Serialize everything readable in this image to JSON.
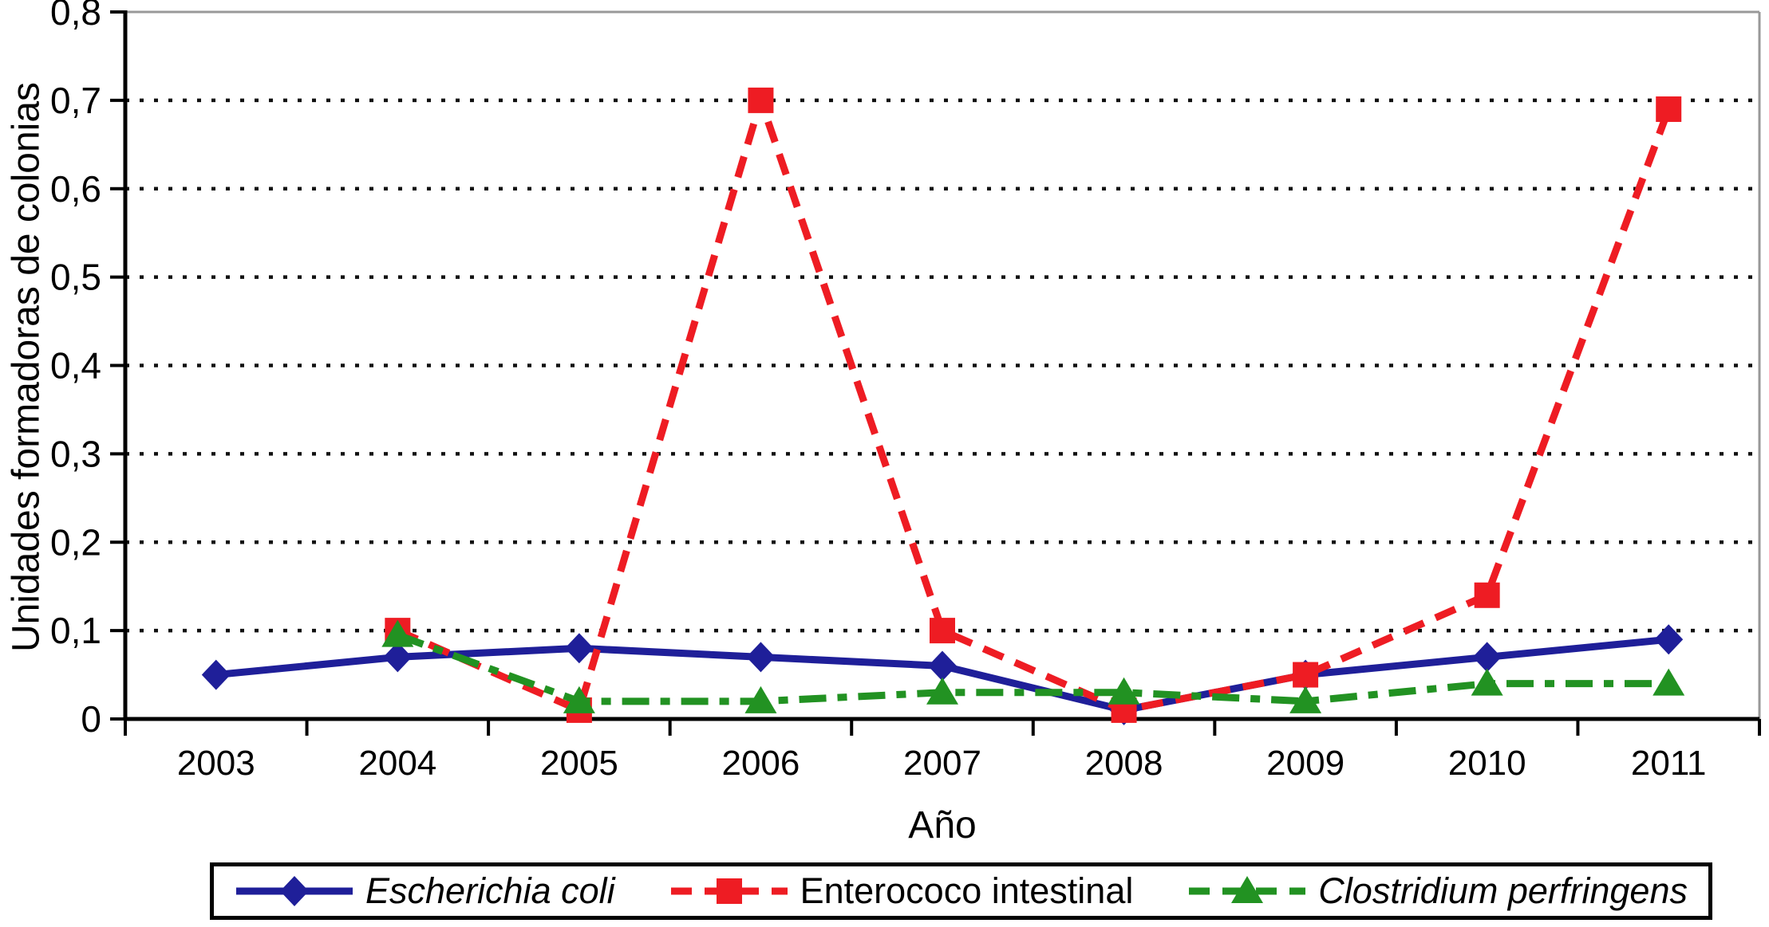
{
  "chart_data": {
    "type": "line",
    "title": "",
    "xlabel": "Año",
    "ylabel": "Unidades formadoras de colonias",
    "categories": [
      "2003",
      "2004",
      "2005",
      "2006",
      "2007",
      "2008",
      "2009",
      "2010",
      "2011"
    ],
    "y_tick_labels": [
      "0",
      "0,1",
      "0,2",
      "0,3",
      "0,4",
      "0,5",
      "0,6",
      "0,7",
      "0,8"
    ],
    "y_tick_values": [
      0,
      0.1,
      0.2,
      0.3,
      0.4,
      0.5,
      0.6,
      0.7,
      0.8
    ],
    "ylim": [
      0,
      0.8
    ],
    "grid": "horizontal dotted black lines at each 0.1",
    "legend_position": "bottom",
    "axis_color": "#000000",
    "plot_border_color": "#999999",
    "series": [
      {
        "name": "Escherichia coli",
        "italic": true,
        "color": "#1F1F99",
        "line_style": "solid",
        "marker": "diamond",
        "values": [
          0.05,
          0.07,
          0.08,
          0.07,
          0.06,
          0.01,
          0.05,
          0.07,
          0.09
        ]
      },
      {
        "name": "Enterococo intestinal",
        "italic": false,
        "color": "#EE1C23",
        "line_style": "dashed",
        "marker": "square",
        "values": [
          null,
          0.1,
          0.01,
          0.7,
          0.1,
          0.01,
          0.05,
          0.14,
          0.69
        ]
      },
      {
        "name": "Clostridium perfringens",
        "italic": true,
        "color": "#229222",
        "line_style": "dash-dot",
        "marker": "triangle",
        "values": [
          null,
          0.095,
          0.02,
          0.02,
          0.03,
          0.03,
          0.02,
          0.04,
          0.04
        ]
      }
    ]
  }
}
